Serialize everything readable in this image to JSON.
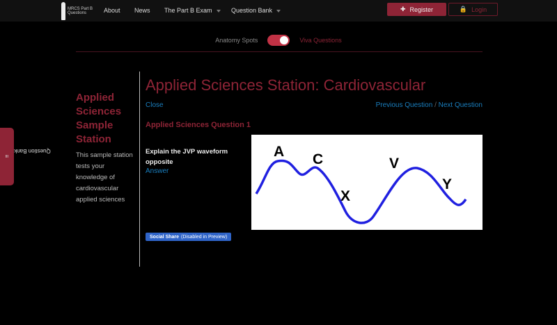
{
  "nav": {
    "logo_text": "MRCS Part B Questions",
    "items": [
      {
        "label": "About"
      },
      {
        "label": "News"
      },
      {
        "label": "The Part B Exam"
      },
      {
        "label": "Question Bank"
      }
    ],
    "register": "Register",
    "login": "Login"
  },
  "toggle": {
    "left": "Anatomy Spots",
    "right": "Viva Questions",
    "state": "on",
    "color": "#c13245"
  },
  "sidebar": {
    "title": "Applied Sciences Sample Station",
    "description": "This sample station tests your knowledge of cardiovascular applied sciences"
  },
  "main": {
    "title": "Applied Sciences Station: Cardiovascular",
    "close": "Close",
    "previous": "Previous Question",
    "separator": "/",
    "next": "Next Question",
    "question_heading": "Applied Sciences Question 1",
    "question": "Explain the JVP waveform opposite",
    "answer": "Answer",
    "share_bold": "Social Share",
    "share_note": "(Disabled in Preview)"
  },
  "figure": {
    "labels": [
      "A",
      "C",
      "X",
      "V",
      "Y"
    ]
  },
  "question_bank_tab": "Question Bank",
  "colors": {
    "accent": "#8e2436",
    "link": "#1a7fbf",
    "share": "#2f64c8"
  }
}
